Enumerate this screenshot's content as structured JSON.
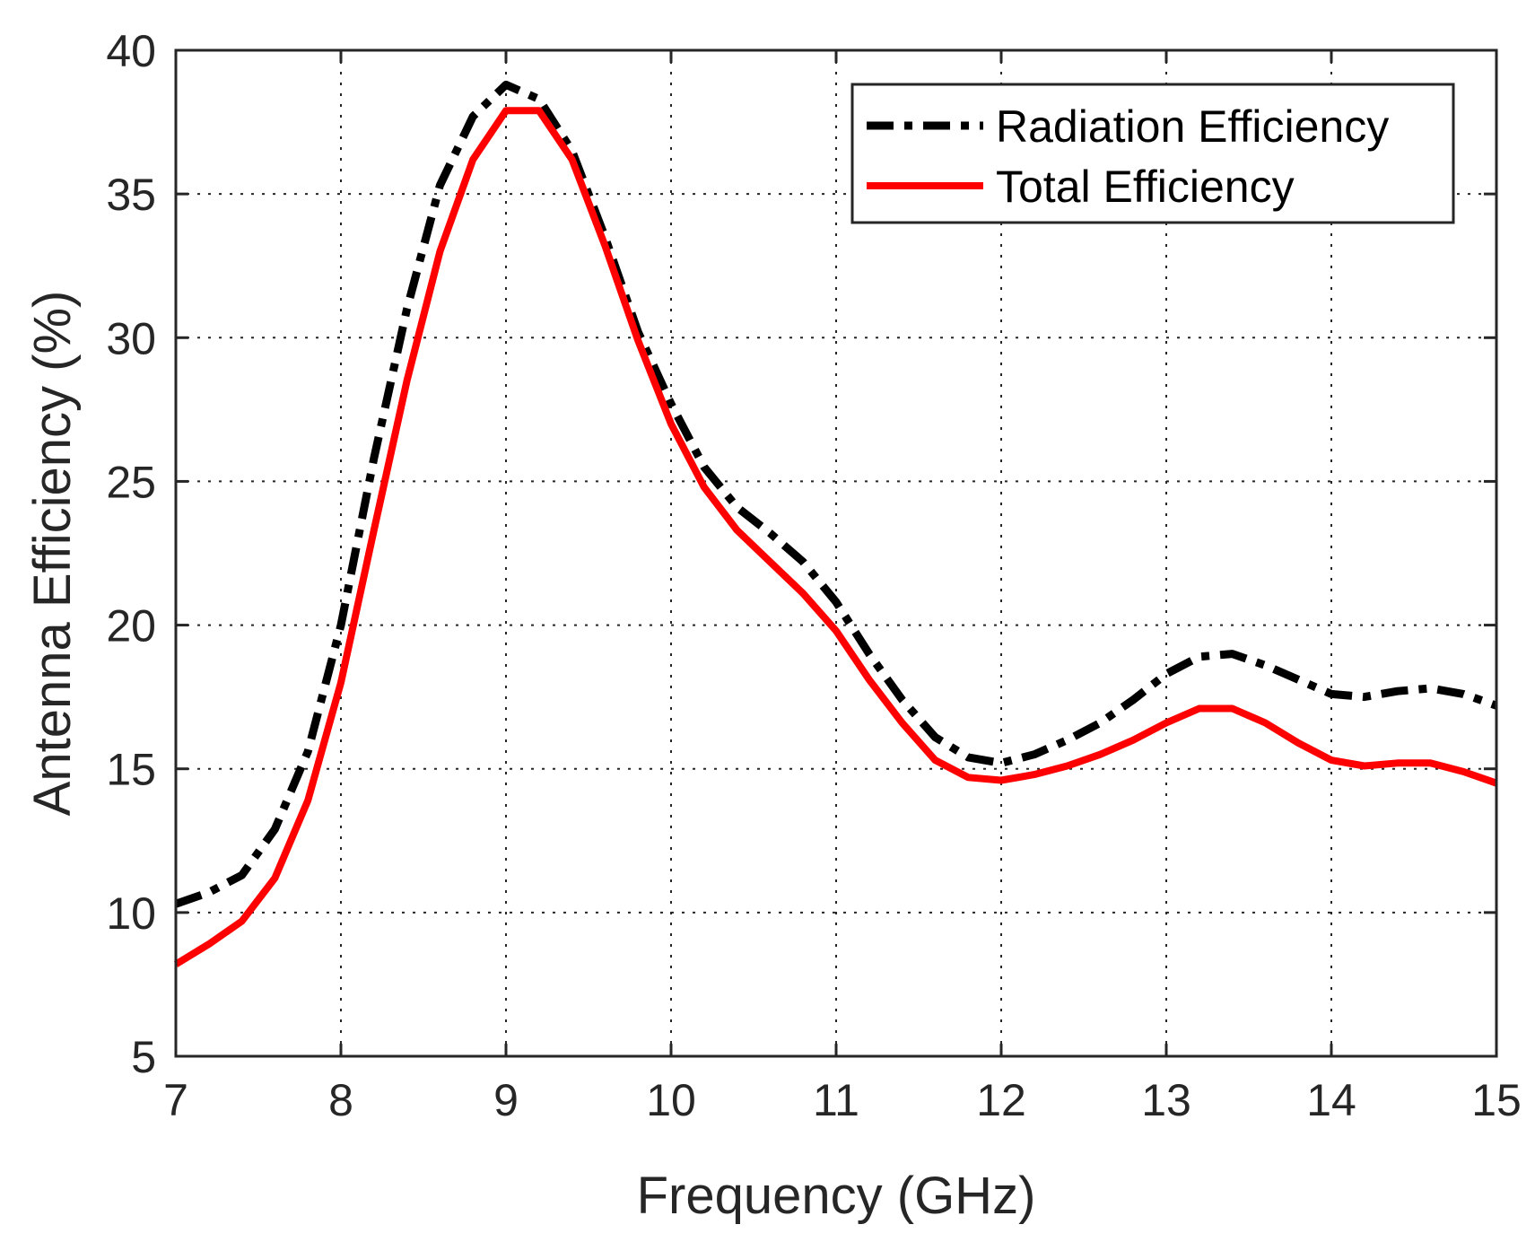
{
  "chart_data": {
    "type": "line",
    "title": "",
    "xlabel": "Frequency (GHz)",
    "ylabel": "Antenna Efficiency (%)",
    "xlim": [
      7,
      15
    ],
    "ylim": [
      5,
      40
    ],
    "xticks": [
      7,
      8,
      9,
      10,
      11,
      12,
      13,
      14,
      15
    ],
    "yticks": [
      5,
      10,
      15,
      20,
      25,
      30,
      35,
      40
    ],
    "grid": true,
    "legend_position": "top-right",
    "series": [
      {
        "name": "Radiation Efficiency",
        "color": "#000000",
        "style": "dash-dot",
        "x": [
          7.0,
          7.2,
          7.4,
          7.6,
          7.8,
          8.0,
          8.2,
          8.4,
          8.6,
          8.8,
          9.0,
          9.2,
          9.4,
          9.6,
          9.8,
          10.0,
          10.2,
          10.4,
          10.6,
          10.8,
          11.0,
          11.2,
          11.4,
          11.6,
          11.8,
          12.0,
          12.2,
          12.4,
          12.6,
          12.8,
          13.0,
          13.2,
          13.4,
          13.6,
          13.8,
          14.0,
          14.2,
          14.4,
          14.6,
          14.8,
          15.0
        ],
        "y": [
          10.3,
          10.7,
          11.3,
          12.9,
          15.6,
          20.0,
          25.8,
          31.0,
          35.3,
          37.7,
          38.8,
          38.3,
          36.5,
          33.5,
          30.2,
          27.7,
          25.5,
          24.1,
          23.2,
          22.2,
          20.8,
          19.0,
          17.4,
          16.1,
          15.4,
          15.2,
          15.5,
          16.0,
          16.6,
          17.4,
          18.3,
          18.9,
          19.0,
          18.6,
          18.1,
          17.6,
          17.5,
          17.7,
          17.8,
          17.6,
          17.2
        ]
      },
      {
        "name": "Total Efficiency",
        "color": "#ff0000",
        "style": "solid",
        "x": [
          7.0,
          7.2,
          7.4,
          7.6,
          7.8,
          8.0,
          8.2,
          8.4,
          8.6,
          8.8,
          9.0,
          9.2,
          9.4,
          9.6,
          9.8,
          10.0,
          10.2,
          10.4,
          10.6,
          10.8,
          11.0,
          11.2,
          11.4,
          11.6,
          11.8,
          12.0,
          12.2,
          12.4,
          12.6,
          12.8,
          13.0,
          13.2,
          13.4,
          13.6,
          13.8,
          14.0,
          14.2,
          14.4,
          14.6,
          14.8,
          15.0
        ],
        "y": [
          8.2,
          8.9,
          9.7,
          11.2,
          13.9,
          18.0,
          23.3,
          28.5,
          33.0,
          36.2,
          37.9,
          37.9,
          36.2,
          33.2,
          29.9,
          27.0,
          24.8,
          23.3,
          22.2,
          21.1,
          19.8,
          18.1,
          16.6,
          15.3,
          14.7,
          14.6,
          14.8,
          15.1,
          15.5,
          16.0,
          16.6,
          17.1,
          17.1,
          16.6,
          15.9,
          15.3,
          15.1,
          15.2,
          15.2,
          14.9,
          14.5
        ]
      }
    ]
  }
}
